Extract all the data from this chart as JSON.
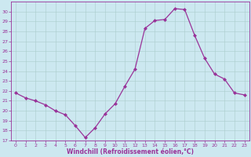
{
  "x": [
    0,
    1,
    2,
    3,
    4,
    5,
    6,
    7,
    8,
    9,
    10,
    11,
    12,
    13,
    14,
    15,
    16,
    17,
    18,
    19,
    20,
    21,
    22,
    23
  ],
  "y": [
    21.8,
    21.3,
    21.0,
    20.6,
    20.0,
    19.6,
    18.5,
    17.3,
    18.3,
    19.7,
    20.7,
    22.5,
    24.2,
    28.3,
    29.1,
    29.2,
    30.3,
    30.2,
    27.6,
    25.3,
    23.7,
    23.2,
    21.8,
    21.6
  ],
  "line_color": "#993399",
  "marker": "D",
  "markersize": 2.0,
  "linewidth": 0.9,
  "xlabel": "Windchill (Refroidissement éolien,°C)",
  "ylim": [
    17,
    31
  ],
  "xlim": [
    -0.5,
    23.5
  ],
  "yticks": [
    17,
    18,
    19,
    20,
    21,
    22,
    23,
    24,
    25,
    26,
    27,
    28,
    29,
    30
  ],
  "xticks": [
    0,
    1,
    2,
    3,
    4,
    5,
    6,
    7,
    8,
    9,
    10,
    11,
    12,
    13,
    14,
    15,
    16,
    17,
    18,
    19,
    20,
    21,
    22,
    23
  ],
  "bg_color": "#cce8f0",
  "grid_color": "#aacccc",
  "xlabel_color": "#993399",
  "tick_color": "#993399",
  "tick_fontsize": 4.5,
  "xlabel_fontsize": 5.5
}
